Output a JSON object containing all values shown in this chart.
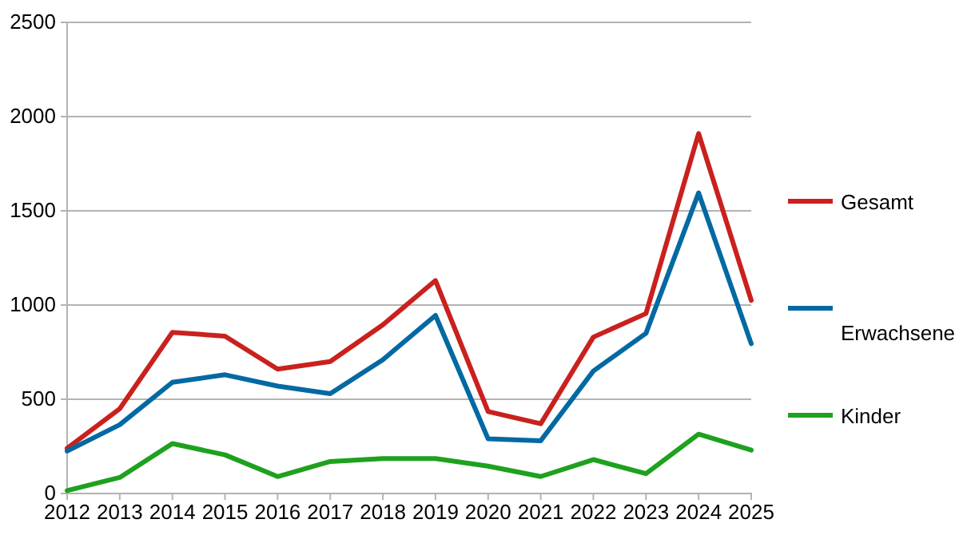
{
  "chart_data": {
    "type": "line",
    "categories": [
      "2012",
      "2013",
      "2014",
      "2015",
      "2016",
      "2017",
      "2018",
      "2019",
      "2020",
      "2021",
      "2022",
      "2023",
      "2024",
      "2025"
    ],
    "series": [
      {
        "name": "Gesamt",
        "color": "#c9211e",
        "values": [
          240,
          450,
          855,
          835,
          660,
          700,
          895,
          1130,
          435,
          370,
          830,
          955,
          1910,
          1025
        ]
      },
      {
        "name": "Erwachsene",
        "color": "#0369a3",
        "values": [
          225,
          365,
          590,
          630,
          570,
          530,
          710,
          945,
          290,
          280,
          650,
          850,
          1595,
          795
        ]
      },
      {
        "name": "Kinder",
        "color": "#1ea11e",
        "values": [
          15,
          85,
          265,
          205,
          90,
          170,
          185,
          185,
          145,
          90,
          180,
          105,
          315,
          230
        ]
      }
    ],
    "ylim": [
      0,
      2500
    ],
    "yticks": [
      0,
      500,
      1000,
      1500,
      2000,
      2500
    ],
    "grid": "y",
    "legend": "right",
    "line_style": "solid",
    "marker": "none"
  }
}
